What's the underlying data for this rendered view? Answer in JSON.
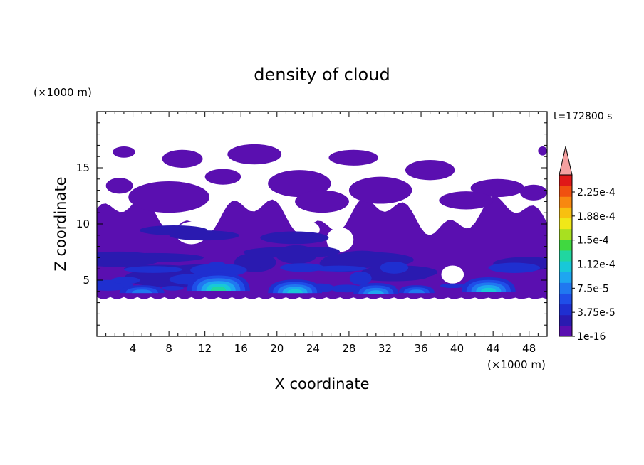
{
  "chart_data": {
    "type": "heatmap",
    "title": "density of cloud",
    "xlabel": "X coordinate",
    "ylabel": "Z coordinate",
    "x_unit_label": "(×1000 m)",
    "y_unit_label": "(×1000 m)",
    "time_label": "t=172800 s",
    "xlim": [
      0,
      50
    ],
    "ylim": [
      0,
      20
    ],
    "x_ticks": [
      "4",
      "8",
      "12",
      "16",
      "20",
      "24",
      "28",
      "32",
      "36",
      "40",
      "44",
      "48"
    ],
    "y_ticks": [
      "5",
      "10",
      "15"
    ],
    "colorbar": {
      "labels": [
        "2.25e-4",
        "1.88e-4",
        "1.5e-4",
        "1.12e-4",
        "7.5e-5",
        "3.75e-5",
        "1e-16"
      ],
      "colors": [
        "#5a0fb0",
        "#2a1ab0",
        "#1f2fd0",
        "#1f4ee8",
        "#2078f0",
        "#1ea6f0",
        "#18c8d8",
        "#20d6a0",
        "#40d840",
        "#a8e020",
        "#f0e818",
        "#f8c010",
        "#f88810",
        "#f05010",
        "#e01818"
      ],
      "extend_color": "#f4a0a0"
    },
    "cloud_layer": {
      "base_km": 3.5,
      "dense_top_km": 11.5,
      "max_top_km": 17
    },
    "cores": [
      {
        "x": 13.5,
        "z": 4.4,
        "width": 7,
        "height": 1.6,
        "peak": 0.00012
      },
      {
        "x": 22,
        "z": 4.2,
        "width": 6,
        "height": 1.2,
        "peak": 0.0001
      },
      {
        "x": 31,
        "z": 4.1,
        "width": 5,
        "height": 1.0,
        "peak": 8e-05
      },
      {
        "x": 43.5,
        "z": 4.3,
        "width": 6,
        "height": 1.3,
        "peak": 0.0001
      },
      {
        "x": 5,
        "z": 4.2,
        "width": 5,
        "height": 0.7,
        "peak": 5e-05
      },
      {
        "x": 35.5,
        "z": 4.2,
        "width": 4,
        "height": 0.7,
        "peak": 5e-05
      }
    ]
  }
}
